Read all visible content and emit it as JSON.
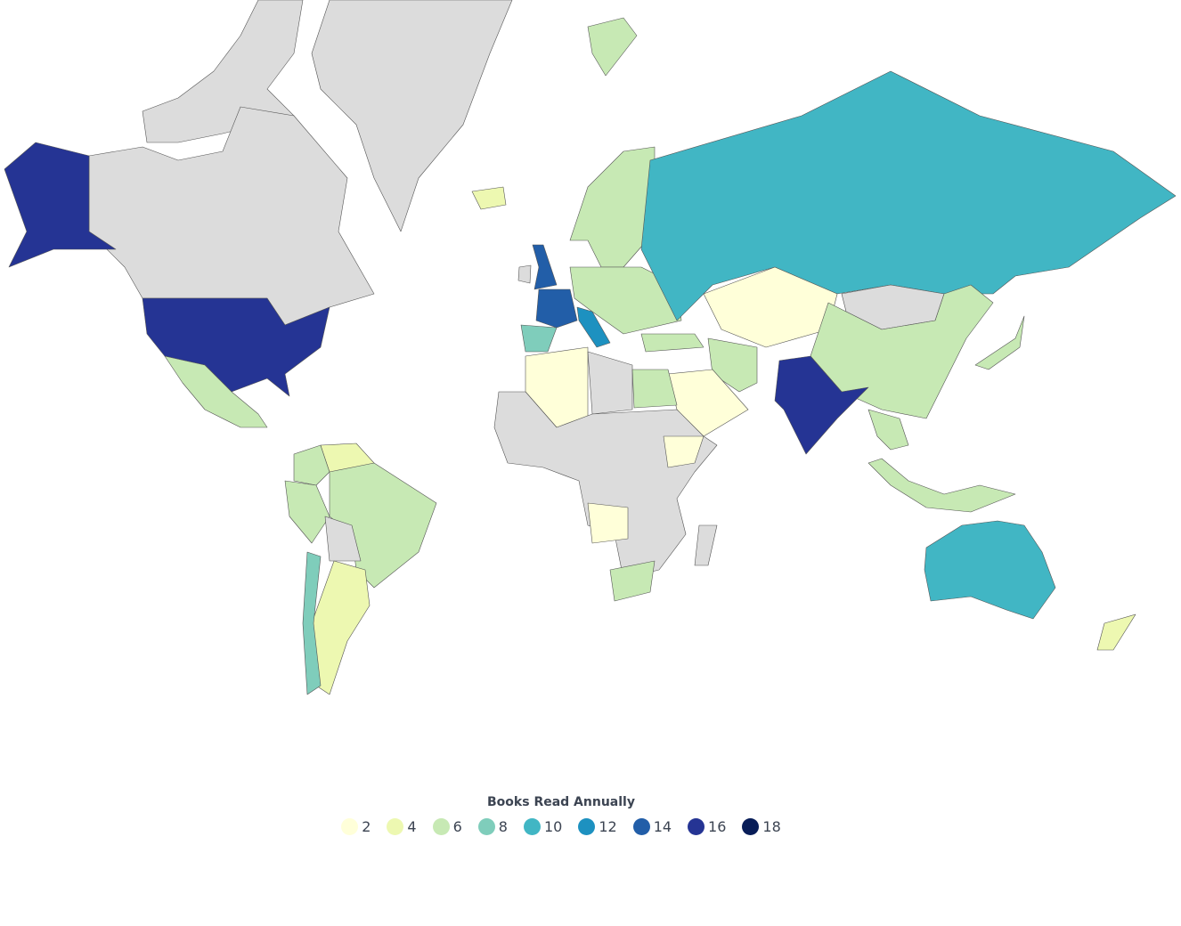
{
  "map": {
    "no_data_color": "#dcdcdc",
    "countries": {
      "greenland": null,
      "canada": null,
      "arctic-islands": null,
      "alaska-usa": 17,
      "usa": 17,
      "mexico": 6,
      "colombia": 7,
      "venezuela": 4,
      "peru": 6,
      "brazil": 6,
      "bolivia": null,
      "argentina": 4,
      "chile": 8,
      "iceland": 5,
      "svalbard": 7,
      "scandinavia": 7,
      "uk": 15,
      "ireland": null,
      "france": 14,
      "spain": 9,
      "italy": 13,
      "central-europe": 6,
      "russia": 11,
      "kazakhstan": 2,
      "mongolia": null,
      "china": 7,
      "india": 16,
      "turkey": 6,
      "iran": 7,
      "saudi-arabia": 3,
      "algeria": 3,
      "libya": null,
      "egypt": 6,
      "central-africa": null,
      "ethiopia": 3,
      "angola": 3,
      "south-africa": 7,
      "madagascar": null,
      "indonesia": 6,
      "japan": 6,
      "southeast-asia": 6,
      "australia": 10,
      "new-zealand": 5
    }
  },
  "legend": {
    "title": "Books Read Annually",
    "items": [
      {
        "label": "2",
        "color": "#ffffd9"
      },
      {
        "label": "4",
        "color": "#edf8b1"
      },
      {
        "label": "6",
        "color": "#c7e9b4"
      },
      {
        "label": "8",
        "color": "#7fcdbb"
      },
      {
        "label": "10",
        "color": "#41b6c4"
      },
      {
        "label": "12",
        "color": "#1d91c0"
      },
      {
        "label": "14",
        "color": "#225ea8"
      },
      {
        "label": "16",
        "color": "#253494"
      },
      {
        "label": "18",
        "color": "#081d58"
      }
    ]
  }
}
